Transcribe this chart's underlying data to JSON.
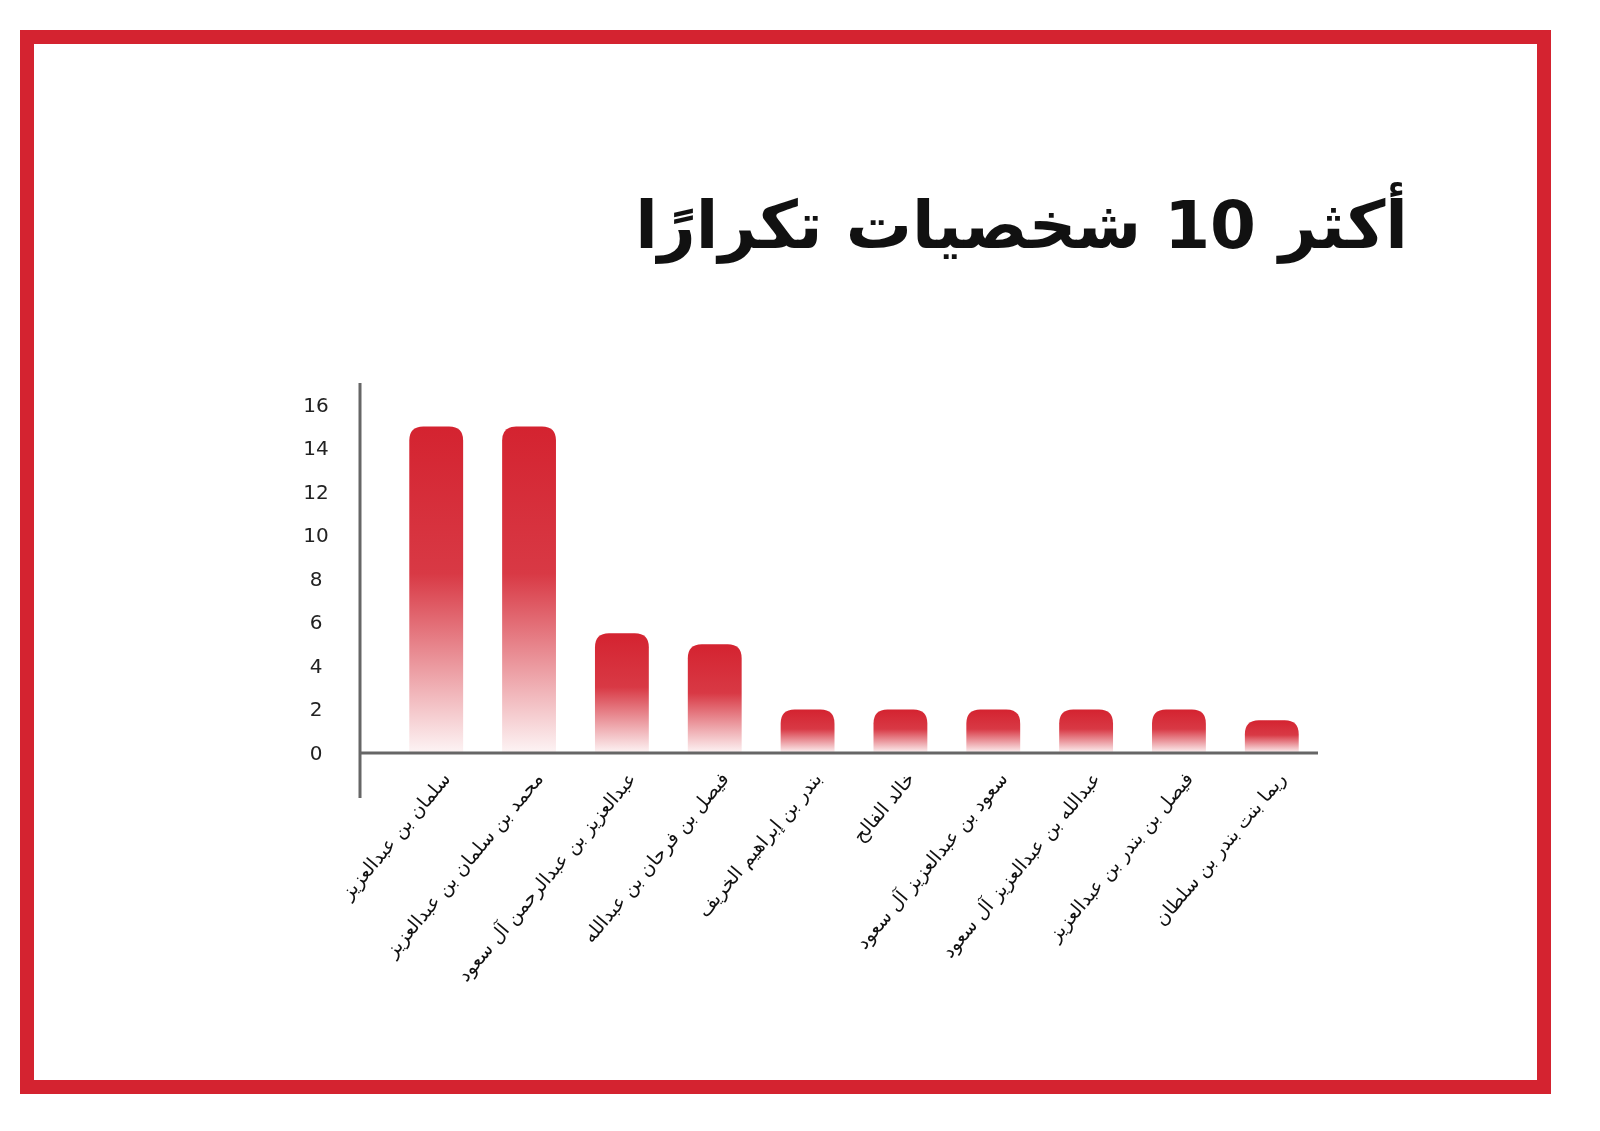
{
  "chart_data": {
    "type": "bar",
    "title": "أكثر 10 شخصيات تكرارًا",
    "categories": [
      "سلمان بن عبدالعزيز",
      "محمد بن سلمان بن عبدالعزيز",
      "عبدالعزيز بن عبدالرحمن آل سعود",
      "فيصل بن فرحان بن عبدالله",
      "بندر بن إبراهيم الخريف",
      "خالد الفالح",
      "سعود بن عبدالعزيز آل سعود",
      "عبدالله بن عبدالعزيز آل سعود",
      "فيصل بن بندر بن عبدالعزيز",
      "ريما بنت بندر بن سلطان"
    ],
    "values": [
      15,
      15,
      5.5,
      5,
      2,
      2,
      2,
      2,
      2,
      1.5
    ],
    "color": "#d42330",
    "ylim": [
      0,
      17
    ],
    "yticks": [
      0,
      2,
      4,
      6,
      8,
      10,
      12,
      14,
      16
    ]
  }
}
